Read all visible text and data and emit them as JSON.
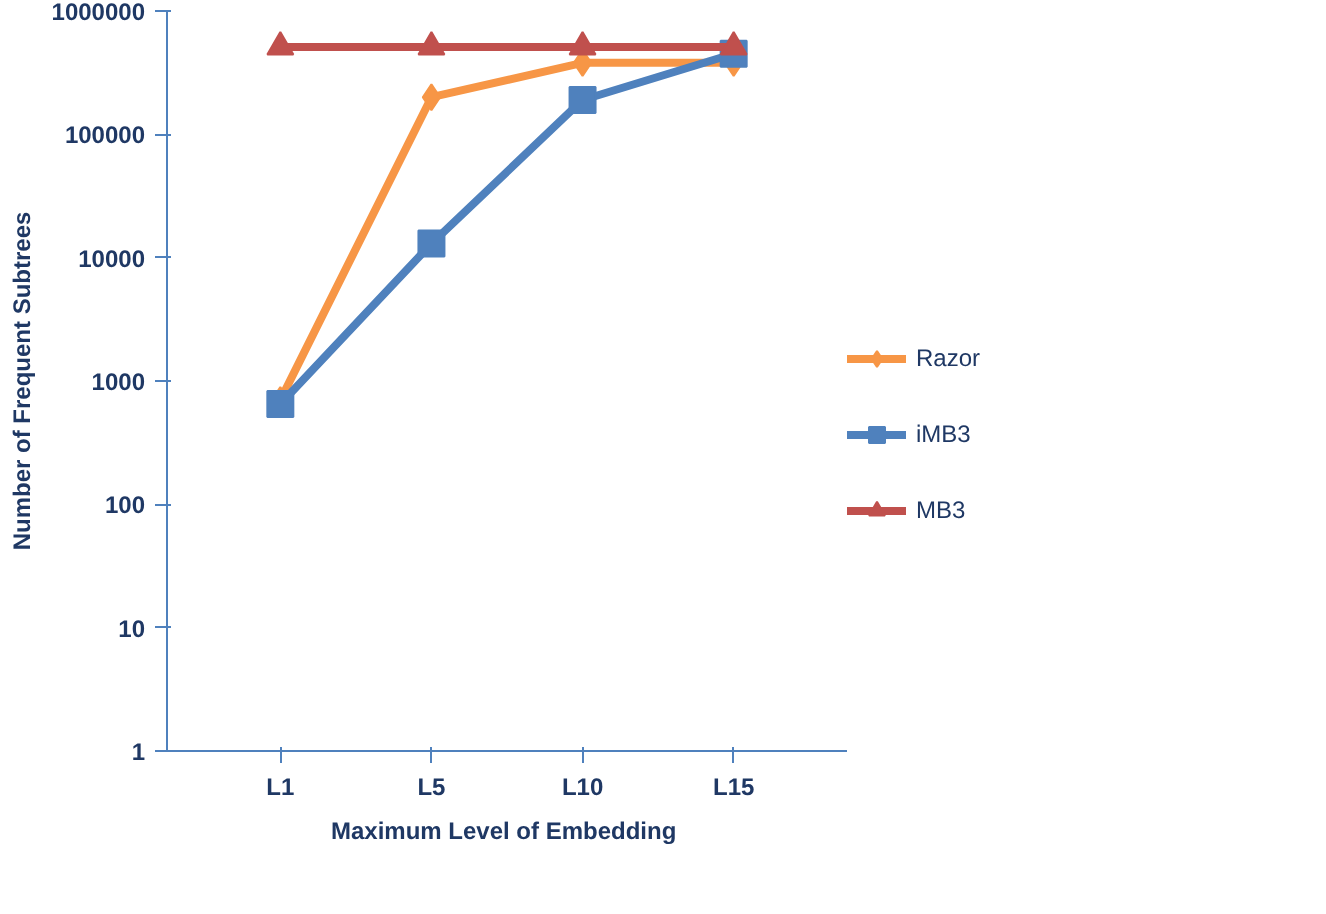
{
  "chart_data": {
    "type": "line",
    "xlabel": "Maximum  Level of Embedding",
    "ylabel": "Number of Frequent Subtrees",
    "categories": [
      "L1",
      "L5",
      "L10",
      "L15"
    ],
    "series": [
      {
        "name": "Razor",
        "color": "#f79646",
        "marker": "diamond",
        "values": [
          700,
          200000,
          380000,
          380000
        ]
      },
      {
        "name": "iMB3",
        "color": "#4f81bd",
        "marker": "square",
        "values": [
          650,
          13000,
          190000,
          450000
        ]
      },
      {
        "name": "MB3",
        "color": "#c0504d",
        "marker": "triangle",
        "values": [
          510000,
          510000,
          510000,
          510000
        ]
      }
    ],
    "log": true,
    "ylim": [
      1,
      1000000
    ],
    "yticks": [
      1,
      10,
      100,
      1000,
      10000,
      100000,
      1000000
    ],
    "grid": false,
    "legend": "right"
  }
}
